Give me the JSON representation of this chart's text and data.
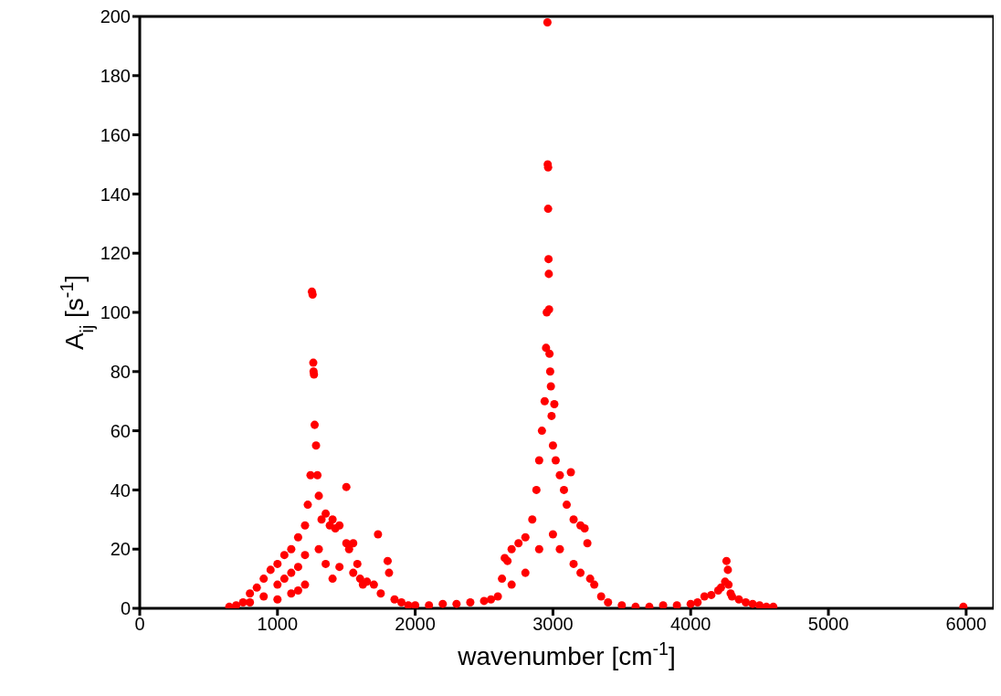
{
  "chart_data": {
    "type": "scatter",
    "xlabel": "wavenumber [cm$^{-1}$]",
    "ylabel": "A$_{ij}$ [s$^{-1}$]",
    "xlim": [
      0,
      6200
    ],
    "xticks": [
      0,
      1000,
      2000,
      3000,
      4000,
      5000,
      6000
    ],
    "ylim": [
      0,
      200
    ],
    "yticks": [
      0,
      20,
      40,
      60,
      80,
      100,
      120,
      140,
      160,
      180,
      200
    ],
    "marker": "circle",
    "series": [
      {
        "color": "#ff0000",
        "x": [
          650,
          700,
          750,
          800,
          800,
          850,
          900,
          900,
          950,
          1000,
          1000,
          1000,
          1050,
          1050,
          1100,
          1100,
          1100,
          1150,
          1150,
          1150,
          1200,
          1200,
          1200,
          1220,
          1240,
          1250,
          1255,
          1260,
          1262,
          1265,
          1270,
          1280,
          1290,
          1300,
          1300,
          1320,
          1350,
          1350,
          1380,
          1400,
          1400,
          1420,
          1450,
          1450,
          1500,
          1500,
          1520,
          1550,
          1550,
          1580,
          1600,
          1620,
          1650,
          1700,
          1730,
          1750,
          1800,
          1810,
          1850,
          1900,
          1950,
          2000,
          2100,
          2200,
          2300,
          2400,
          2500,
          2550,
          2600,
          2630,
          2650,
          2670,
          2700,
          2700,
          2750,
          2800,
          2800,
          2850,
          2880,
          2900,
          2900,
          2920,
          2940,
          2950,
          2955,
          2960,
          2962,
          2965,
          2965,
          2968,
          2970,
          2972,
          2975,
          2980,
          2985,
          2990,
          3000,
          3000,
          3010,
          3020,
          3050,
          3050,
          3080,
          3100,
          3130,
          3150,
          3150,
          3200,
          3200,
          3230,
          3250,
          3270,
          3300,
          3350,
          3400,
          3500,
          3600,
          3700,
          3800,
          3900,
          4000,
          4050,
          4100,
          4150,
          4200,
          4220,
          4250,
          4260,
          4270,
          4275,
          4290,
          4300,
          4350,
          4400,
          4450,
          4500,
          4550,
          4600,
          5980
        ],
        "values": [
          0.5,
          1,
          2,
          5,
          2,
          7,
          10,
          4,
          13,
          15,
          8,
          3,
          18,
          10,
          20,
          12,
          5,
          24,
          14,
          6,
          28,
          18,
          8,
          35,
          45,
          107,
          106,
          83,
          80,
          79,
          62,
          55,
          45,
          38,
          20,
          30,
          32,
          15,
          28,
          30,
          10,
          27,
          28,
          14,
          41,
          22,
          20,
          22,
          12,
          15,
          10,
          8,
          9,
          8,
          25,
          5,
          16,
          12,
          3,
          2,
          1,
          1,
          1,
          1.5,
          1.5,
          2,
          2.5,
          3,
          4,
          10,
          17,
          16,
          20,
          8,
          22,
          24,
          12,
          30,
          40,
          50,
          20,
          60,
          70,
          88,
          100,
          198,
          150,
          149,
          135,
          118,
          113,
          101,
          86,
          80,
          75,
          65,
          55,
          25,
          69,
          50,
          45,
          20,
          40,
          35,
          46,
          30,
          15,
          28,
          12,
          27,
          22,
          10,
          8,
          4,
          2,
          1,
          0.5,
          0.5,
          1,
          1,
          1.5,
          2,
          4,
          4.5,
          6,
          7,
          9,
          16,
          13,
          8,
          5,
          4,
          3,
          2,
          1.5,
          1,
          0.5,
          0.5,
          0.5
        ]
      }
    ]
  }
}
